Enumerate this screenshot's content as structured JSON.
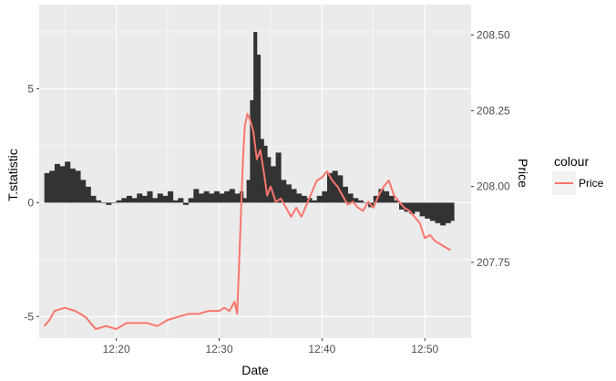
{
  "chart_data": {
    "type": "line",
    "xlabel": "Date",
    "ylabel_left": "T.statistic",
    "ylabel_right": "Price",
    "x_range": [
      "12:12:30",
      "12:54:30"
    ],
    "x_ticks": [
      "12:20",
      "12:30",
      "12:40",
      "12:50"
    ],
    "y_left_range": [
      -5.95,
      8.7
    ],
    "y_left_ticks": [
      "-5",
      "0",
      "5"
    ],
    "y_right_range": [
      207.5,
      208.6
    ],
    "y_right_ticks": [
      "207.75",
      "208.00",
      "208.25",
      "208.50"
    ],
    "grid": true,
    "panel_background": "#ebebeb",
    "gridline_color": "#ffffff",
    "legend": {
      "title": "colour",
      "entries": [
        "Price"
      ],
      "placement": "right"
    },
    "series": [
      {
        "name": "T.statistic",
        "geom": "bar",
        "color": "#333333",
        "x": [
          "12:13:00",
          "12:13:30",
          "12:14:00",
          "12:14:30",
          "12:15:00",
          "12:15:30",
          "12:16:00",
          "12:16:30",
          "12:17:00",
          "12:17:30",
          "12:18:00",
          "12:18:30",
          "12:19:00",
          "12:19:30",
          "12:20:00",
          "12:20:30",
          "12:21:00",
          "12:21:30",
          "12:22:00",
          "12:22:30",
          "12:23:00",
          "12:23:30",
          "12:24:00",
          "12:24:30",
          "12:25:00",
          "12:25:30",
          "12:26:00",
          "12:26:30",
          "12:27:00",
          "12:27:30",
          "12:28:00",
          "12:28:30",
          "12:29:00",
          "12:29:30",
          "12:30:00",
          "12:30:30",
          "12:31:00",
          "12:31:30",
          "12:32:00",
          "12:32:20",
          "12:32:40",
          "12:33:00",
          "12:33:20",
          "12:33:40",
          "12:34:00",
          "12:34:20",
          "12:34:40",
          "12:35:00",
          "12:35:30",
          "12:36:00",
          "12:36:30",
          "12:37:00",
          "12:37:30",
          "12:38:00",
          "12:38:30",
          "12:39:00",
          "12:39:30",
          "12:40:00",
          "12:40:30",
          "12:41:00",
          "12:41:30",
          "12:42:00",
          "12:42:30",
          "12:43:00",
          "12:43:30",
          "12:44:00",
          "12:44:30",
          "12:45:00",
          "12:45:30",
          "12:46:00",
          "12:46:30",
          "12:47:00",
          "12:47:30",
          "12:48:00",
          "12:48:30",
          "12:49:00",
          "12:49:30",
          "12:50:00",
          "12:50:30",
          "12:51:00",
          "12:51:30",
          "12:52:00",
          "12:52:30"
        ],
        "values": [
          1.3,
          1.4,
          1.7,
          1.6,
          1.8,
          1.5,
          1.4,
          1.0,
          0.7,
          0.3,
          0.1,
          0.0,
          -0.1,
          0.0,
          0.1,
          0.2,
          0.3,
          0.2,
          0.4,
          0.3,
          0.5,
          0.2,
          0.4,
          0.3,
          0.5,
          0.1,
          0.2,
          -0.1,
          0.2,
          0.6,
          0.4,
          0.5,
          0.4,
          0.5,
          0.4,
          0.5,
          0.6,
          0.4,
          0.5,
          0.2,
          1.0,
          4.5,
          7.5,
          6.5,
          2.8,
          2.5,
          2.0,
          1.6,
          2.2,
          1.0,
          0.8,
          0.6,
          0.4,
          0.3,
          0.2,
          0.1,
          0.3,
          0.5,
          1.3,
          1.4,
          1.2,
          0.7,
          0.4,
          0.2,
          0.1,
          0.0,
          -0.2,
          0.3,
          0.6,
          0.5,
          0.3,
          0.1,
          -0.3,
          -0.4,
          -0.5,
          -0.4,
          -0.6,
          -0.7,
          -0.8,
          -0.9,
          -1.0,
          -0.9,
          -0.8
        ]
      },
      {
        "name": "Price",
        "geom": "line",
        "color": "#f8766d",
        "x": [
          "12:13:00",
          "12:13:30",
          "12:14:00",
          "12:15:00",
          "12:16:00",
          "12:17:00",
          "12:17:30",
          "12:18:00",
          "12:19:00",
          "12:20:00",
          "12:21:00",
          "12:22:00",
          "12:23:00",
          "12:24:00",
          "12:25:00",
          "12:26:00",
          "12:27:00",
          "12:28:00",
          "12:29:00",
          "12:30:00",
          "12:30:30",
          "12:31:00",
          "12:31:30",
          "12:31:45",
          "12:32:00",
          "12:32:10",
          "12:32:20",
          "12:32:30",
          "12:32:45",
          "12:33:00",
          "12:33:20",
          "12:33:40",
          "12:34:00",
          "12:34:20",
          "12:34:40",
          "12:35:00",
          "12:35:30",
          "12:36:00",
          "12:36:30",
          "12:37:00",
          "12:37:30",
          "12:38:00",
          "12:38:30",
          "12:39:00",
          "12:39:30",
          "12:40:00",
          "12:40:30",
          "12:41:00",
          "12:41:30",
          "12:42:00",
          "12:42:30",
          "12:43:00",
          "12:43:30",
          "12:44:00",
          "12:44:30",
          "12:45:00",
          "12:45:30",
          "12:46:00",
          "12:46:30",
          "12:47:00",
          "12:47:30",
          "12:48:00",
          "12:48:30",
          "12:49:00",
          "12:49:30",
          "12:50:00",
          "12:50:30",
          "12:51:00",
          "12:51:30",
          "12:52:00",
          "12:52:30"
        ],
        "values": [
          207.54,
          207.56,
          207.59,
          207.6,
          207.59,
          207.57,
          207.55,
          207.53,
          207.54,
          207.53,
          207.55,
          207.55,
          207.55,
          207.54,
          207.56,
          207.57,
          207.58,
          207.58,
          207.59,
          207.59,
          207.6,
          207.59,
          207.62,
          207.58,
          207.8,
          207.96,
          208.1,
          208.2,
          208.24,
          208.22,
          208.18,
          208.09,
          208.12,
          208.05,
          207.97,
          208.0,
          207.95,
          207.96,
          207.93,
          207.9,
          207.93,
          207.9,
          207.94,
          207.98,
          208.02,
          208.03,
          208.05,
          208.02,
          208.0,
          207.97,
          207.94,
          207.95,
          207.93,
          207.92,
          207.95,
          207.93,
          207.97,
          208.0,
          208.02,
          207.97,
          207.95,
          207.93,
          207.92,
          207.9,
          207.88,
          207.83,
          207.84,
          207.82,
          207.81,
          207.8,
          207.79
        ]
      }
    ]
  }
}
